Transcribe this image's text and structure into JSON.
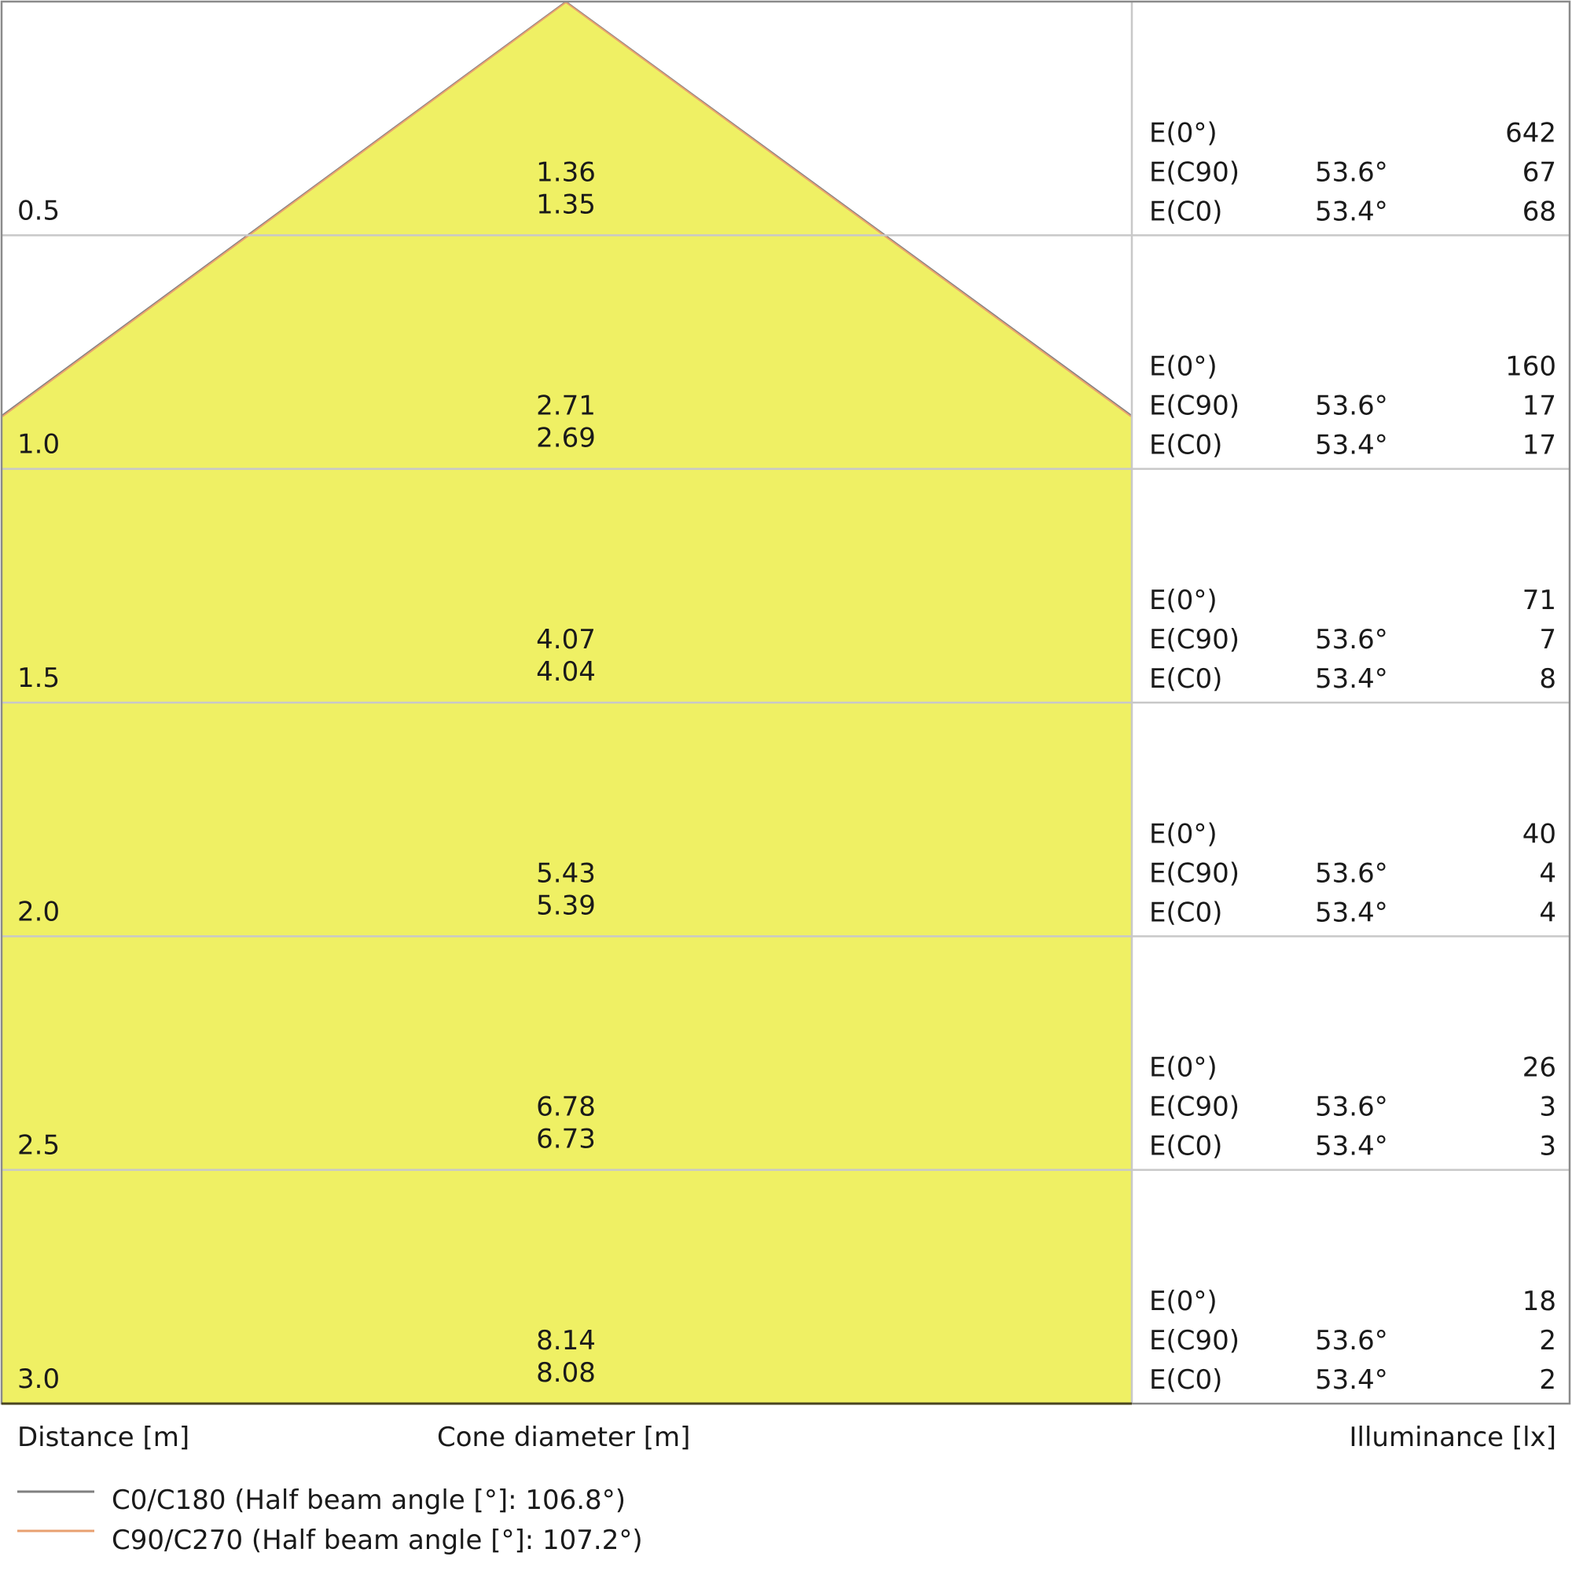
{
  "chart_data": {
    "type": "cone-diagram",
    "colors": {
      "fill": "#EFF064",
      "c0_line": "#808080",
      "c90_line": "#E8A070",
      "grid": "#c8c8c8",
      "border": "#8a8a8a"
    },
    "rows": [
      {
        "distance": "0.5",
        "cone": [
          "1.36",
          "1.35"
        ],
        "e0": "642",
        "ec90_angle": "53.6°",
        "ec90": "67",
        "ec0_angle": "53.4°",
        "ec0": "68"
      },
      {
        "distance": "1.0",
        "cone": [
          "2.71",
          "2.69"
        ],
        "e0": "160",
        "ec90_angle": "53.6°",
        "ec90": "17",
        "ec0_angle": "53.4°",
        "ec0": "17"
      },
      {
        "distance": "1.5",
        "cone": [
          "4.07",
          "4.04"
        ],
        "e0": "71",
        "ec90_angle": "53.6°",
        "ec90": "7",
        "ec0_angle": "53.4°",
        "ec0": "8"
      },
      {
        "distance": "2.0",
        "cone": [
          "5.43",
          "5.39"
        ],
        "e0": "40",
        "ec90_angle": "53.6°",
        "ec90": "4",
        "ec0_angle": "53.4°",
        "ec0": "4"
      },
      {
        "distance": "2.5",
        "cone": [
          "6.78",
          "6.73"
        ],
        "e0": "26",
        "ec90_angle": "53.6°",
        "ec90": "3",
        "ec0_angle": "53.4°",
        "ec0": "3"
      },
      {
        "distance": "3.0",
        "cone": [
          "8.14",
          "8.08"
        ],
        "e0": "18",
        "ec90_angle": "53.6°",
        "ec90": "2",
        "ec0_angle": "53.4°",
        "ec0": "2"
      }
    ],
    "row_labels": {
      "e0": "E(0°)",
      "ec90": "E(C90)",
      "ec0": "E(C0)"
    },
    "xlabel_distance": "Distance [m]",
    "xlabel_cone": "Cone diameter [m]",
    "xlabel_illuminance": "Illuminance [lx]",
    "legend": [
      {
        "name": "C0/C180 (Half beam angle [°]: 106.8°)",
        "color": "#808080"
      },
      {
        "name": "C90/C270 (Half beam angle [°]: 107.2°)",
        "color": "#E8A070"
      }
    ]
  }
}
